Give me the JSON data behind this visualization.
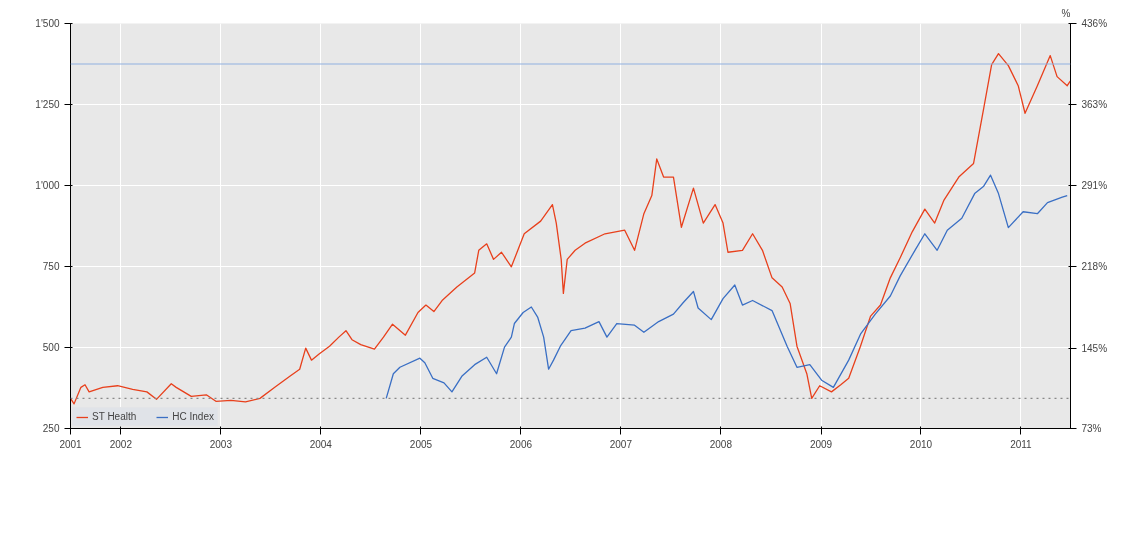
{
  "chart_data": {
    "type": "line",
    "xlim": [
      "2001-07-01",
      "2011-07-01"
    ],
    "xticks": [
      {
        "value": "2001-07-01",
        "label": "2001"
      },
      {
        "value": "2002-01-01",
        "label": "2002"
      },
      {
        "value": "2003-01-01",
        "label": "2003"
      },
      {
        "value": "2004-01-01",
        "label": "2004"
      },
      {
        "value": "2005-01-01",
        "label": "2005"
      },
      {
        "value": "2006-01-01",
        "label": "2006"
      },
      {
        "value": "2007-01-01",
        "label": "2007"
      },
      {
        "value": "2008-01-01",
        "label": "2008"
      },
      {
        "value": "2009-01-01",
        "label": "2009"
      },
      {
        "value": "2010-01-01",
        "label": "2010"
      },
      {
        "value": "2011-01-01",
        "label": "2011"
      }
    ],
    "ylim": [
      250,
      1500
    ],
    "yticks": [
      250,
      500,
      750,
      {
        "value": 1000,
        "label": "1'000"
      },
      {
        "value": 1250,
        "label": "1'250"
      },
      {
        "value": 1500,
        "label": "1'500"
      }
    ],
    "y2lim": [
      73,
      436
    ],
    "y2ticks": [
      {
        "value": 73,
        "label": "73%"
      },
      {
        "value": 145,
        "label": "145%"
      },
      {
        "value": 218,
        "label": "218%"
      },
      {
        "value": 291,
        "label": "291%"
      },
      {
        "value": 363,
        "label": "363%"
      },
      {
        "value": 436,
        "label": "436%"
      }
    ],
    "y2label": "%",
    "grid": true,
    "legend": "bottom left",
    "ref_lines": [
      {
        "axis": "y",
        "value": 1375,
        "color": "#8fb0e0",
        "line_style": "solid"
      },
      {
        "axis": "y",
        "value": 343,
        "color": "#888888",
        "line_style": "dotted"
      }
    ],
    "series": [
      {
        "name": "ST Health",
        "color": "#e8401c",
        "x": [
          "2001-07-01",
          "2001-07-14",
          "2001-08-08",
          "2001-08-23",
          "2001-09-07",
          "2001-10-27",
          "2001-12-20",
          "2002-02-13",
          "2002-04-06",
          "2002-05-11",
          "2002-07-04",
          "2002-07-22",
          "2002-09-15",
          "2002-11-09",
          "2002-12-14",
          "2003-02-07",
          "2003-04-01",
          "2003-05-24",
          "2003-07-17",
          "2003-09-10",
          "2003-10-16",
          "2003-11-07",
          "2003-11-28",
          "2003-12-27",
          "2004-02-02",
          "2004-03-07",
          "2004-04-02",
          "2004-04-24",
          "2004-05-26",
          "2004-07-15",
          "2004-08-17",
          "2004-09-19",
          "2004-11-05",
          "2004-12-21",
          "2005-01-19",
          "2005-02-17",
          "2005-03-19",
          "2005-05-12",
          "2005-07-16",
          "2005-07-31",
          "2005-08-29",
          "2005-09-23",
          "2005-10-22",
          "2005-11-27",
          "2006-01-13",
          "2006-03-14",
          "2006-04-26",
          "2006-05-10",
          "2006-05-28",
          "2006-06-05",
          "2006-06-19",
          "2006-07-18",
          "2006-08-23",
          "2006-11-04",
          "2007-01-15",
          "2007-02-20",
          "2007-03-26",
          "2007-04-24",
          "2007-05-12",
          "2007-06-06",
          "2007-07-12",
          "2007-08-10",
          "2007-09-23",
          "2007-10-29",
          "2007-12-11",
          "2008-01-09",
          "2008-01-27",
          "2008-03-20",
          "2008-04-26",
          "2008-06-01",
          "2008-07-06",
          "2008-08-12",
          "2008-09-10",
          "2008-10-05",
          "2008-11-10",
          "2008-11-28",
          "2008-12-27",
          "2009-02-08",
          "2009-03-14",
          "2009-04-12",
          "2009-05-25",
          "2009-07-01",
          "2009-08-06",
          "2009-09-11",
          "2009-10-17",
          "2009-11-30",
          "2010-01-15",
          "2010-02-20",
          "2010-03-26",
          "2010-05-19",
          "2010-07-12",
          "2010-08-18",
          "2010-09-16",
          "2010-10-11",
          "2010-11-16",
          "2010-12-22",
          "2011-01-16",
          "2011-03-02",
          "2011-04-18",
          "2011-05-13",
          "2011-06-19",
          "2011-06-30"
        ],
        "values": [
          343,
          326,
          377,
          385,
          363,
          377,
          382,
          371,
          363,
          340,
          388,
          377,
          349,
          354,
          334,
          337,
          332,
          343,
          377,
          411,
          433,
          498,
          461,
          481,
          504,
          532,
          552,
          524,
          509,
          495,
          532,
          572,
          538,
          608,
          631,
          611,
          645,
          687,
          730,
          800,
          820,
          772,
          794,
          749,
          851,
          890,
          941,
          884,
          772,
          667,
          772,
          800,
          822,
          851,
          862,
          800,
          913,
          969,
          1082,
          1026,
          1026,
          871,
          992,
          884,
          941,
          884,
          794,
          800,
          851,
          800,
          715,
          687,
          636,
          504,
          419,
          343,
          382,
          363,
          385,
          405,
          504,
          597,
          631,
          715,
          777,
          857,
          927,
          884,
          955,
          1026,
          1068,
          1238,
          1373,
          1407,
          1370,
          1308,
          1223,
          1308,
          1401,
          1336,
          1308,
          1322
        ]
      },
      {
        "name": "HC Index",
        "color": "#3a6fc4",
        "x": [
          "2004-08-27",
          "2004-09-22",
          "2004-10-16",
          "2004-12-28",
          "2005-01-15",
          "2005-02-13",
          "2005-03-26",
          "2005-04-24",
          "2005-05-30",
          "2005-07-16",
          "2005-08-29",
          "2005-10-04",
          "2005-11-02",
          "2005-11-27",
          "2005-12-08",
          "2006-01-09",
          "2006-02-08",
          "2006-03-03",
          "2006-03-25",
          "2006-04-12",
          "2006-04-30",
          "2006-05-25",
          "2006-07-03",
          "2006-08-23",
          "2006-10-13",
          "2006-11-11",
          "2006-12-17",
          "2007-02-20",
          "2007-03-26",
          "2007-05-19",
          "2007-07-12",
          "2007-08-17",
          "2007-09-23",
          "2007-10-10",
          "2007-11-27",
          "2008-01-09",
          "2008-02-21",
          "2008-03-20",
          "2008-04-26",
          "2008-07-06",
          "2008-08-30",
          "2008-10-05",
          "2008-11-21",
          "2009-01-03",
          "2009-02-15",
          "2009-04-12",
          "2009-05-25",
          "2009-07-18",
          "2009-09-11",
          "2009-10-17",
          "2009-12-10",
          "2010-01-15",
          "2010-03-01",
          "2010-04-07",
          "2010-05-30",
          "2010-07-16",
          "2010-08-18",
          "2010-09-12",
          "2010-10-11",
          "2010-11-16",
          "2011-01-09",
          "2011-03-02",
          "2011-04-08",
          "2011-06-01",
          "2011-06-19"
        ],
        "values": [
          343,
          419,
          439,
          467,
          453,
          405,
          391,
          363,
          411,
          447,
          470,
          419,
          501,
          532,
          574,
          608,
          625,
          594,
          532,
          433,
          461,
          504,
          552,
          560,
          580,
          532,
          574,
          569,
          547,
          580,
          603,
          639,
          673,
          622,
          586,
          651,
          693,
          631,
          645,
          614,
          504,
          439,
          447,
          399,
          377,
          461,
          541,
          603,
          659,
          721,
          800,
          851,
          800,
          862,
          899,
          975,
          998,
          1032,
          975,
          870,
          919,
          913,
          947,
          964,
          969
        ]
      }
    ]
  }
}
